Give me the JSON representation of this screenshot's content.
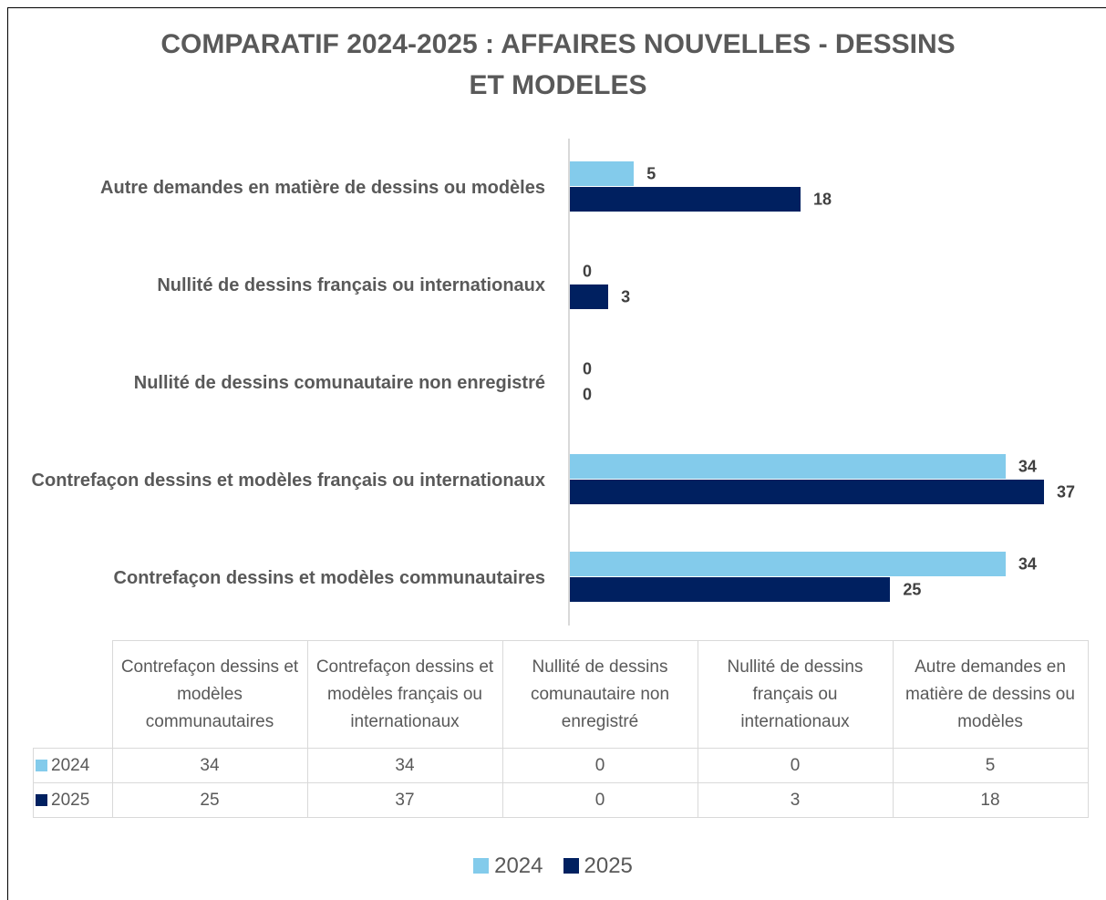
{
  "chart_data": {
    "type": "bar",
    "orientation": "horizontal",
    "title": "COMPARATIF 2024-2025 : AFFAIRES NOUVELLES - DESSINS ET MODELES",
    "categories": [
      "Contrefaçon dessins et modèles communautaires",
      "Contrefaçon dessins et modèles français ou internationaux",
      "Nullité de dessins comunautaire non enregistré",
      "Nullité de dessins français ou internationaux",
      "Autre demandes en matière de dessins ou modèles"
    ],
    "series": [
      {
        "name": "2024",
        "color": "#83cbeb",
        "values": [
          34,
          34,
          0,
          0,
          5
        ]
      },
      {
        "name": "2025",
        "color": "#002060",
        "values": [
          25,
          37,
          0,
          3,
          18
        ]
      }
    ],
    "data_table": true,
    "legend": "bottom"
  }
}
